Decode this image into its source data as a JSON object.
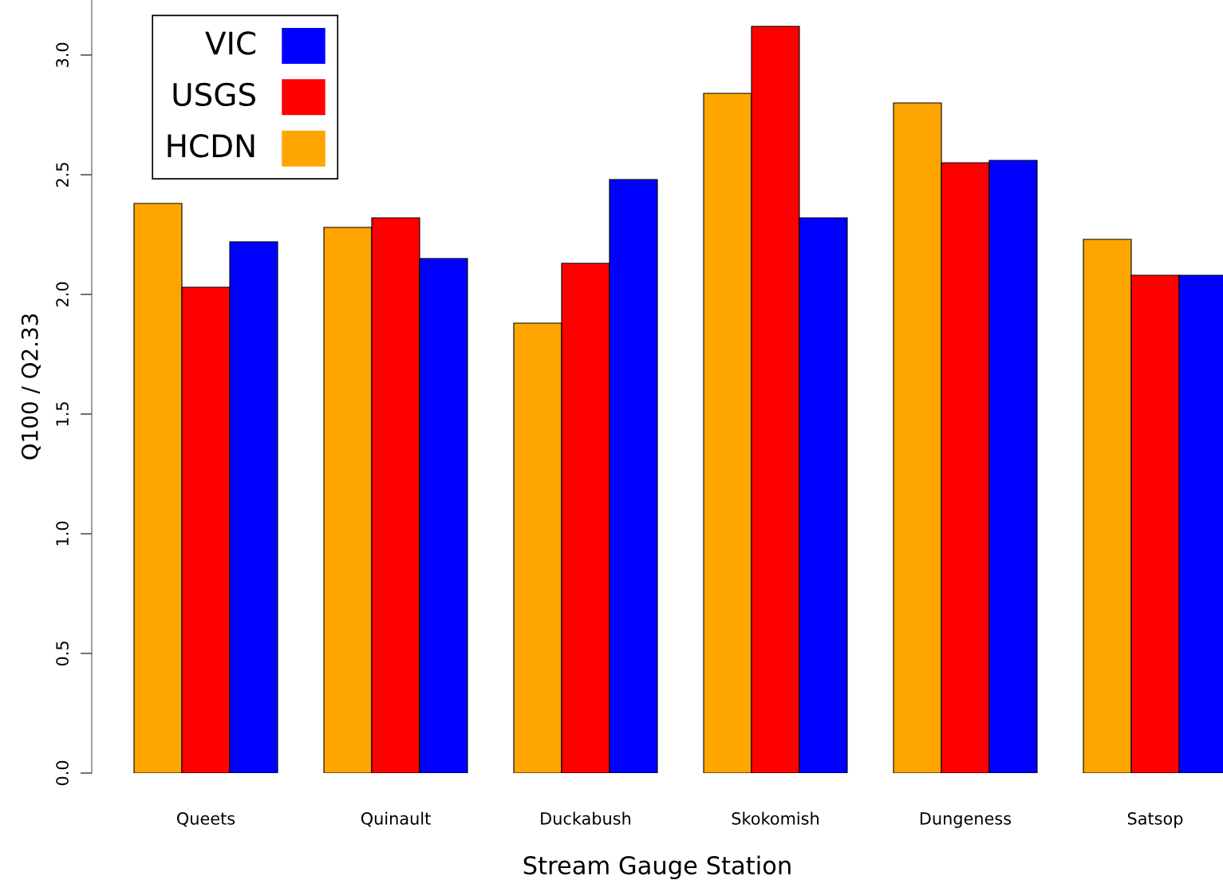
{
  "chart_data": {
    "type": "bar",
    "xlabel": "Stream Gauge Station",
    "ylabel": "Q100 / Q2.33",
    "categories": [
      "Queets",
      "Quinault",
      "Duckabush",
      "Skokomish",
      "Dungeness",
      "Satsop"
    ],
    "series": [
      {
        "name": "HCDN",
        "color": "#ffa500",
        "values": [
          2.38,
          2.28,
          1.88,
          2.84,
          2.8,
          2.23
        ]
      },
      {
        "name": "USGS",
        "color": "#ff0000",
        "values": [
          2.03,
          2.32,
          2.13,
          3.12,
          2.55,
          2.08
        ]
      },
      {
        "name": "VIC",
        "color": "#0000ff",
        "values": [
          2.22,
          2.15,
          2.48,
          2.32,
          2.56,
          2.08
        ]
      }
    ],
    "ylim": [
      0,
      3.23
    ],
    "yticks": [
      {
        "value": 0,
        "label": "0.0"
      },
      {
        "value": 0.5,
        "label": "0.5"
      },
      {
        "value": 1,
        "label": "1.0"
      },
      {
        "value": 1.5,
        "label": "1.5"
      },
      {
        "value": 2,
        "label": "2.0"
      },
      {
        "value": 2.5,
        "label": "2.5"
      },
      {
        "value": 3,
        "label": "3.0"
      }
    ],
    "legend": "top left",
    "grid": false
  }
}
